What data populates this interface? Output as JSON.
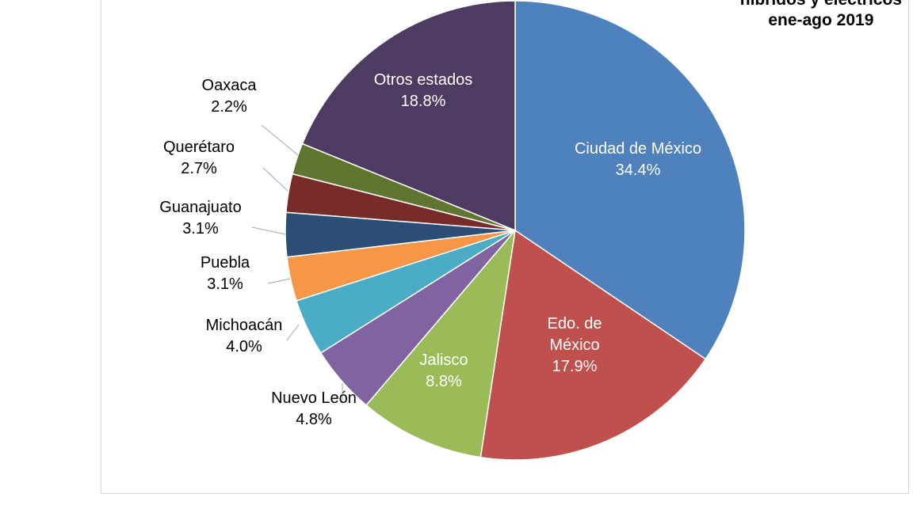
{
  "chart_data": {
    "type": "pie",
    "title_lines": [
      "híbridos y eléctricos",
      "ene-ago 2019"
    ],
    "start": "top",
    "direction": "clockwise",
    "slices": [
      {
        "label": "Ciudad de México",
        "value": 34.4,
        "text": "34.4%",
        "color": "#4F81BD"
      },
      {
        "label": "Edo. de México",
        "value": 17.9,
        "text": "17.9%",
        "color": "#C0504D"
      },
      {
        "label": "Jalisco",
        "value": 8.8,
        "text": "8.8%",
        "color": "#9BBB59"
      },
      {
        "label": "Nuevo León",
        "value": 4.8,
        "text": "4.8%",
        "color": "#8064A2"
      },
      {
        "label": "Michoacán",
        "value": 4.0,
        "text": "4.0%",
        "color": "#4BACC6"
      },
      {
        "label": "Puebla",
        "value": 3.1,
        "text": "3.1%",
        "color": "#F79646"
      },
      {
        "label": "Guanajuato",
        "value": 3.1,
        "text": "3.1%",
        "color": "#2C4D75"
      },
      {
        "label": "Querétaro",
        "value": 2.7,
        "text": "2.7%",
        "color": "#772C2A"
      },
      {
        "label": "Oaxaca",
        "value": 2.2,
        "text": "2.2%",
        "color": "#5F7530"
      },
      {
        "label": "Otros estados",
        "value": 18.8,
        "text": "18.8%",
        "color": "#4D3B62"
      }
    ]
  }
}
